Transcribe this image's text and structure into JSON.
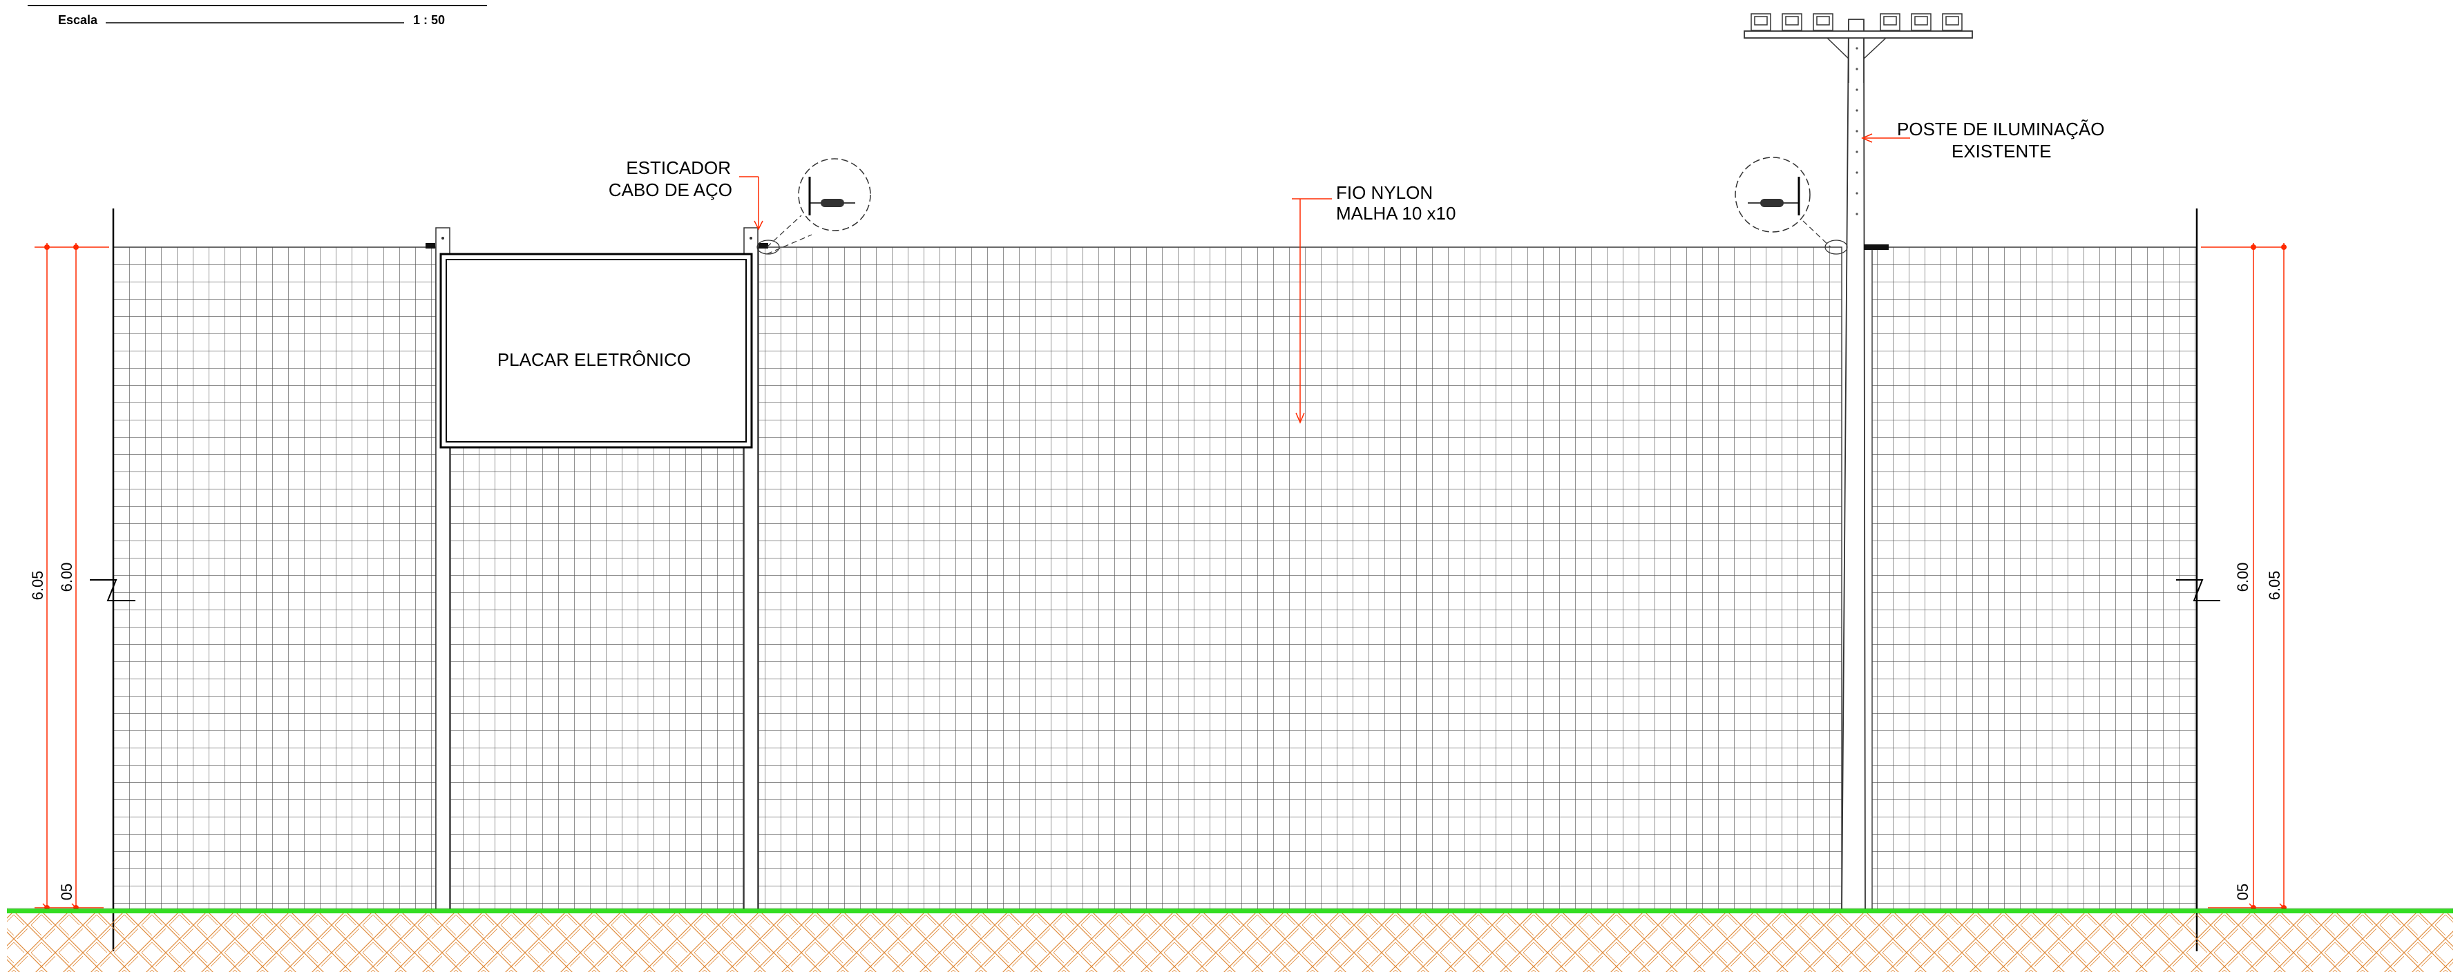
{
  "title_block": {
    "label": "Escala",
    "value": "1 : 50"
  },
  "annotations": {
    "tensioner_line1": "ESTICADOR",
    "tensioner_line2": "CABO DE AÇO",
    "net_line1": "FIO NYLON",
    "net_line2": "MALHA 10 x10",
    "pole_line1": "POSTE DE ILUMINAÇÃO",
    "pole_line2": "EXISTENTE",
    "scoreboard": "PLACAR ELETRÔNICO"
  },
  "dimensions": {
    "left_total": "6.05",
    "left_net": "6.00",
    "left_base": "05",
    "right_total": "6.05",
    "right_net": "6.00",
    "right_base": "05"
  },
  "colors": {
    "dimension": "#ff2a00",
    "grass": "#33dd22",
    "soil": "#e08a3a",
    "mesh": "#444444"
  }
}
